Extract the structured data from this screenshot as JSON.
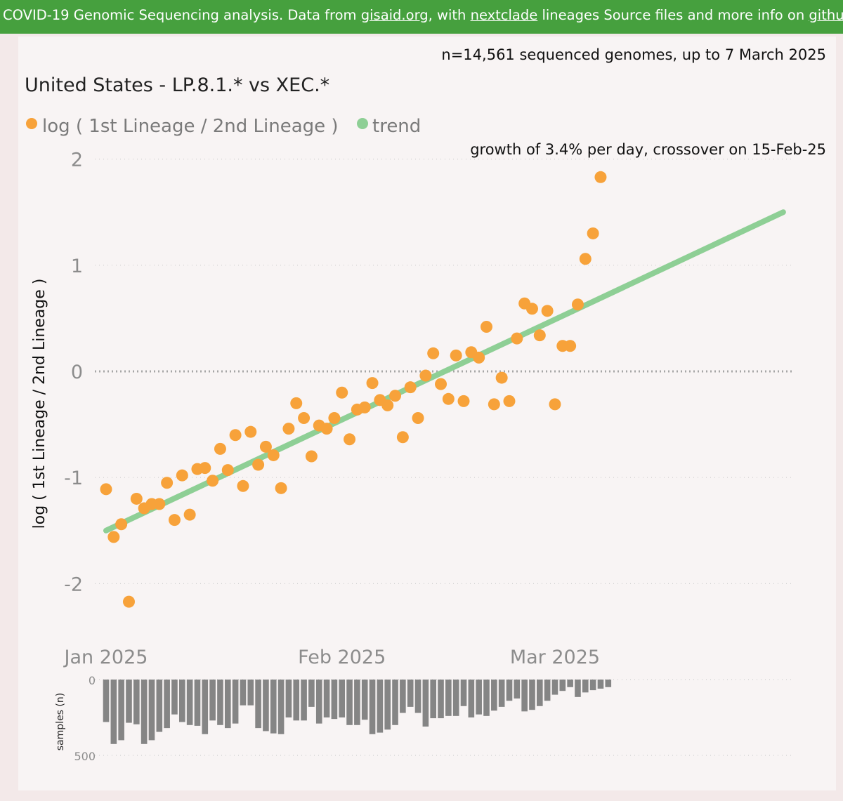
{
  "banner": {
    "t1": "COVID-19 Genomic Sequencing analysis. Data from ",
    "link1": "gisaid.org",
    "t2": ", with ",
    "link2": "nextclade",
    "t3": " lineages Source files and more info on ",
    "link3": "github"
  },
  "summary": "n=14,561 sequenced genomes, up to 7 March 2025",
  "colors": {
    "banner": "#46a03e",
    "points": "#f7a23a",
    "trend": "#8ecf95",
    "bars": "#858585",
    "grid": "#b9b9b9"
  },
  "chart_data": [
    {
      "type": "scatter",
      "title": "United States - LP.8.1.* vs XEC.*",
      "legend": [
        "log ( 1st Lineage / 2nd Lineage )",
        "trend"
      ],
      "annotation": "growth of 3.4% per day, crossover on 15-Feb-25",
      "ylabel": "log ( 1st Lineage / 2nd Lineage )",
      "ylim": [
        -2.5,
        2.2
      ],
      "yticks": [
        2,
        1,
        0,
        -1,
        -2
      ],
      "ytick_labels": [
        "2",
        "1",
        "0",
        "-1",
        "-2"
      ],
      "x_start": "2025-01-01",
      "x_tick_days": [
        0,
        31,
        59
      ],
      "x_tick_labels": [
        "Jan 2025",
        "Feb 2025",
        "Mar 2025"
      ],
      "xlim_days": [
        -1.5,
        91
      ],
      "series": [
        {
          "name": "log ( 1st Lineage / 2nd Lineage )",
          "day": [
            0,
            1,
            2,
            3,
            4,
            5,
            6,
            7,
            8,
            9,
            10,
            11,
            12,
            13,
            14,
            15,
            16,
            17,
            18,
            19,
            20,
            21,
            22,
            23,
            24,
            25,
            26,
            27,
            28,
            29,
            30,
            31,
            32,
            33,
            34,
            35,
            36,
            37,
            38,
            39,
            40,
            41,
            42,
            43,
            44,
            45,
            46,
            47,
            48,
            49,
            50,
            51,
            52,
            53,
            54,
            55,
            56,
            57,
            58,
            59,
            60,
            61,
            62,
            63,
            64,
            65,
            66
          ],
          "y": [
            -1.11,
            -1.56,
            -1.44,
            -2.17,
            -1.2,
            -1.29,
            -1.25,
            -1.25,
            -1.05,
            -1.4,
            -0.98,
            -1.35,
            -0.92,
            -0.91,
            -1.03,
            -0.73,
            -0.93,
            -0.6,
            -1.08,
            -0.57,
            -0.88,
            -0.71,
            -0.79,
            -1.1,
            -0.54,
            -0.3,
            -0.44,
            -0.8,
            -0.51,
            -0.54,
            -0.44,
            -0.2,
            -0.64,
            -0.36,
            -0.34,
            -0.11,
            -0.27,
            -0.32,
            -0.23,
            -0.62,
            -0.15,
            -0.44,
            -0.04,
            0.17,
            -0.12,
            -0.26,
            0.15,
            -0.28,
            0.18,
            0.13,
            0.42,
            -0.31,
            -0.06,
            -0.28,
            0.31,
            0.64,
            0.59,
            0.34,
            0.57,
            -0.31,
            0.24,
            0.24,
            0.63,
            1.06,
            1.3,
            1.83,
            null
          ]
        },
        {
          "name": "trend",
          "day": [
            0,
            89
          ],
          "y": [
            -1.5,
            1.5
          ]
        }
      ]
    },
    {
      "type": "bar",
      "ylabel": "samples (n)",
      "ylim": [
        0,
        500
      ],
      "yticks": [
        0,
        500
      ],
      "ytick_labels": [
        "0",
        "500"
      ],
      "inverted": true,
      "day": [
        0,
        1,
        2,
        3,
        4,
        5,
        6,
        7,
        8,
        9,
        10,
        11,
        12,
        13,
        14,
        15,
        16,
        17,
        18,
        19,
        20,
        21,
        22,
        23,
        24,
        25,
        26,
        27,
        28,
        29,
        30,
        31,
        32,
        33,
        34,
        35,
        36,
        37,
        38,
        39,
        40,
        41,
        42,
        43,
        44,
        45,
        46,
        47,
        48,
        49,
        50,
        51,
        52,
        53,
        54,
        55,
        56,
        57,
        58,
        59,
        60,
        61,
        62,
        63,
        64,
        65,
        66
      ],
      "values": [
        280,
        425,
        400,
        285,
        295,
        425,
        400,
        345,
        320,
        230,
        280,
        300,
        305,
        360,
        270,
        300,
        320,
        290,
        170,
        170,
        320,
        340,
        355,
        360,
        250,
        270,
        270,
        180,
        290,
        250,
        260,
        250,
        300,
        300,
        265,
        360,
        350,
        330,
        300,
        220,
        180,
        220,
        310,
        255,
        255,
        240,
        240,
        175,
        250,
        230,
        240,
        205,
        180,
        140,
        125,
        210,
        200,
        175,
        140,
        100,
        75,
        50,
        115,
        85,
        70,
        60,
        50
      ]
    }
  ]
}
